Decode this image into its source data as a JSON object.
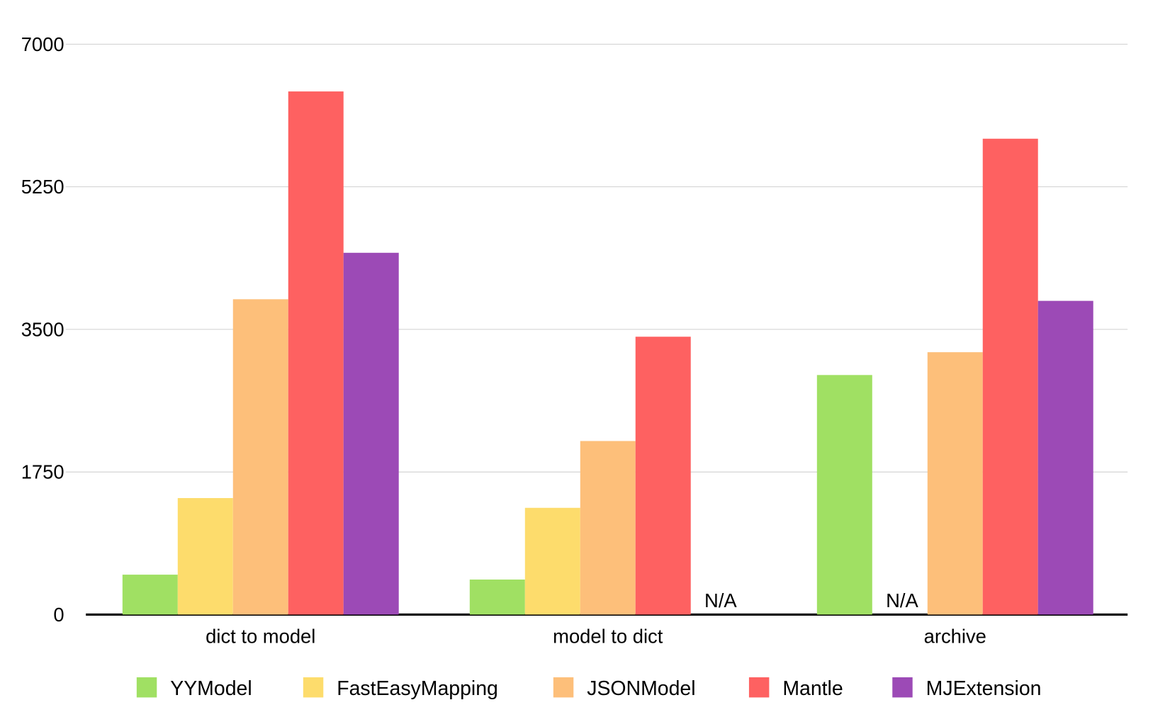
{
  "chart_data": {
    "type": "bar",
    "title": "",
    "xlabel": "",
    "ylabel": "",
    "categories": [
      "dict to model",
      "model to dict",
      "archive"
    ],
    "ylim": [
      0,
      7000
    ],
    "yticks": [
      "0",
      "1750",
      "3500",
      "5250",
      "7000"
    ],
    "grid": true,
    "legend_position": "bottom",
    "na_label": "N/A",
    "series": [
      {
        "name": "YYModel",
        "color": "#a0e063",
        "values": [
          490,
          430,
          2940
        ]
      },
      {
        "name": "FastEasyMapping",
        "color": "#fddc6c",
        "values": [
          1430,
          1310,
          null
        ]
      },
      {
        "name": "JSONModel",
        "color": "#fdbf7a",
        "values": [
          3870,
          2130,
          3220
        ]
      },
      {
        "name": "Mantle",
        "color": "#fe6161",
        "values": [
          6420,
          3410,
          5840
        ]
      },
      {
        "name": "MJExtension",
        "color": "#9c4ab6",
        "values": [
          4440,
          null,
          3850
        ]
      }
    ]
  }
}
